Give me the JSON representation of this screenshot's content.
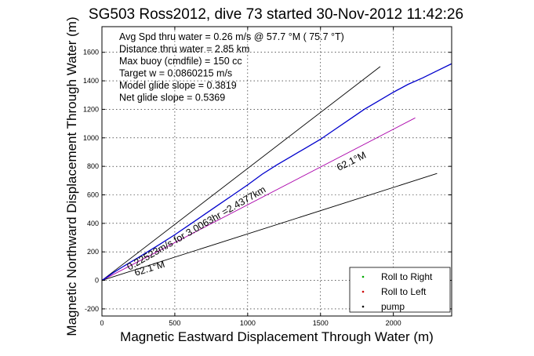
{
  "chart_data": {
    "type": "line",
    "title": "SG503 Ross2012, dive 73 started 30-Nov-2012 11:42:26",
    "xlabel": "Magnetic Eastward Displacement Through Water (m)",
    "ylabel": "Magnetic Northward Displacement Through Water (m)",
    "xlim": [
      0,
      2400
    ],
    "ylim": [
      -250,
      1780
    ],
    "x_ticks": [
      "0",
      "500",
      "1000",
      "1500",
      "2000"
    ],
    "y_ticks": [
      "-200",
      "0",
      "200",
      "400",
      "600",
      "800",
      "1000",
      "1200",
      "1400",
      "1600"
    ],
    "grid": true,
    "stats": [
      "Avg Spd thru water =  0.26 m/s @  57.7    °M ( 75.7 °T)",
      "Distance thru water =  2.85 km",
      "Max buoy (cmdfile) = 150 cc",
      "Target w = 0.0860215 m/s",
      "Model glide slope = 0.3819",
      "Net glide slope = 0.5369"
    ],
    "track_annotation": "0.22523m/s for 3.0063hr =2.4377km",
    "heading_labels": [
      "62.1°M",
      "62.1°M"
    ],
    "reference_lines": [
      {
        "color": "#000000",
        "points": [
          [
            0,
            0
          ],
          [
            1910,
            1500
          ]
        ]
      },
      {
        "color": "#000000",
        "points": [
          [
            0,
            0
          ],
          [
            2300,
            750
          ]
        ]
      },
      {
        "color": "#aa00aa",
        "points": [
          [
            0,
            0
          ],
          [
            2150,
            1140
          ]
        ]
      }
    ],
    "series": [
      {
        "color": "#0000cc",
        "points": [
          [
            0,
            0
          ],
          [
            30,
            20
          ],
          [
            80,
            55
          ],
          [
            150,
            100
          ],
          [
            250,
            160
          ],
          [
            400,
            255
          ],
          [
            500,
            320
          ],
          [
            600,
            390
          ],
          [
            700,
            460
          ],
          [
            800,
            530
          ],
          [
            900,
            600
          ],
          [
            1000,
            670
          ],
          [
            1100,
            745
          ],
          [
            1200,
            810
          ],
          [
            1300,
            870
          ],
          [
            1400,
            930
          ],
          [
            1500,
            990
          ],
          [
            1600,
            1060
          ],
          [
            1700,
            1130
          ],
          [
            1800,
            1200
          ],
          [
            1900,
            1260
          ],
          [
            2000,
            1320
          ],
          [
            2100,
            1375
          ],
          [
            2200,
            1420
          ],
          [
            2300,
            1470
          ],
          [
            2400,
            1520
          ]
        ]
      }
    ],
    "legend": {
      "placement": "bottom-right",
      "entries": [
        {
          "label": "Roll to Right",
          "color": "#00aa00"
        },
        {
          "label": "Roll to Left",
          "color": "#cc0000"
        },
        {
          "label": "pump",
          "color": "#000000"
        }
      ]
    }
  }
}
